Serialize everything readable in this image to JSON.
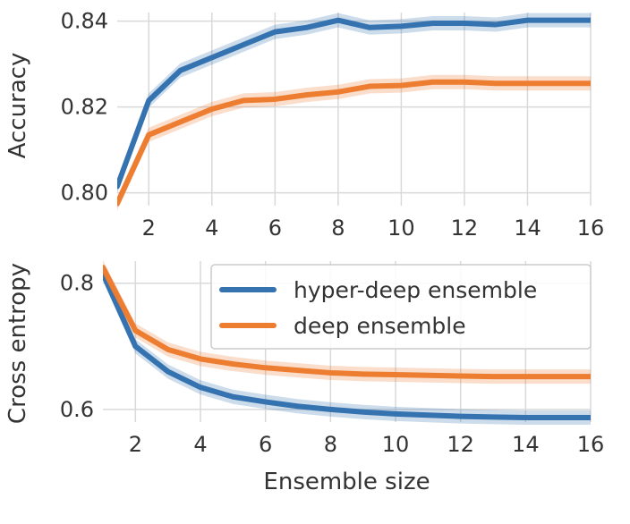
{
  "chart_data": [
    {
      "type": "line",
      "title": "",
      "xlabel": "",
      "ylabel": "Accuracy",
      "xlim": [
        1,
        16
      ],
      "ylim": [
        0.797,
        0.842
      ],
      "xticks": [
        2,
        4,
        6,
        8,
        10,
        12,
        14,
        16
      ],
      "xtick_labels": [
        "2",
        "4",
        "6",
        "8",
        "10",
        "12",
        "14",
        "16"
      ],
      "yticks": [
        0.8,
        0.82,
        0.84
      ],
      "ytick_labels": [
        "0.80",
        "0.82",
        "0.84"
      ],
      "grid": true,
      "x": [
        1,
        2,
        3,
        4,
        5,
        6,
        7,
        8,
        9,
        10,
        11,
        12,
        13,
        14,
        15,
        16
      ],
      "series": [
        {
          "name": "hyper-deep ensemble",
          "color": "#3572b0",
          "values": [
            0.8015,
            0.8215,
            0.8285,
            0.8315,
            0.8345,
            0.8375,
            0.8385,
            0.8402,
            0.8385,
            0.8388,
            0.8395,
            0.8395,
            0.8392,
            0.8402,
            0.8402,
            0.8402
          ]
        },
        {
          "name": "deep ensemble",
          "color": "#ed7d31",
          "values": [
            0.7975,
            0.8135,
            0.8165,
            0.8195,
            0.8215,
            0.8218,
            0.8228,
            0.8235,
            0.8248,
            0.825,
            0.8258,
            0.8258,
            0.8255,
            0.8255,
            0.8255,
            0.8255
          ]
        }
      ]
    },
    {
      "type": "line",
      "title": "",
      "xlabel": "Ensemble size",
      "ylabel": "Cross entropy",
      "xlim": [
        1,
        16
      ],
      "ylim": [
        0.58,
        0.835
      ],
      "xticks": [
        2,
        4,
        6,
        8,
        10,
        12,
        14,
        16
      ],
      "xtick_labels": [
        "2",
        "4",
        "6",
        "8",
        "10",
        "12",
        "14",
        "16"
      ],
      "yticks": [
        0.6,
        0.8
      ],
      "ytick_labels": [
        "0.6",
        "0.8"
      ],
      "grid": true,
      "legend": "top-right",
      "x": [
        1,
        2,
        3,
        4,
        5,
        6,
        7,
        8,
        9,
        10,
        11,
        12,
        13,
        14,
        15,
        16
      ],
      "series": [
        {
          "name": "hyper-deep ensemble",
          "color": "#3572b0",
          "values": [
            0.815,
            0.7,
            0.66,
            0.635,
            0.62,
            0.612,
            0.605,
            0.6,
            0.596,
            0.593,
            0.591,
            0.589,
            0.588,
            0.587,
            0.587,
            0.587
          ]
        },
        {
          "name": "deep ensemble",
          "color": "#ed7d31",
          "values": [
            0.825,
            0.725,
            0.695,
            0.68,
            0.672,
            0.666,
            0.662,
            0.658,
            0.656,
            0.655,
            0.654,
            0.653,
            0.652,
            0.652,
            0.652,
            0.652
          ]
        }
      ]
    }
  ]
}
